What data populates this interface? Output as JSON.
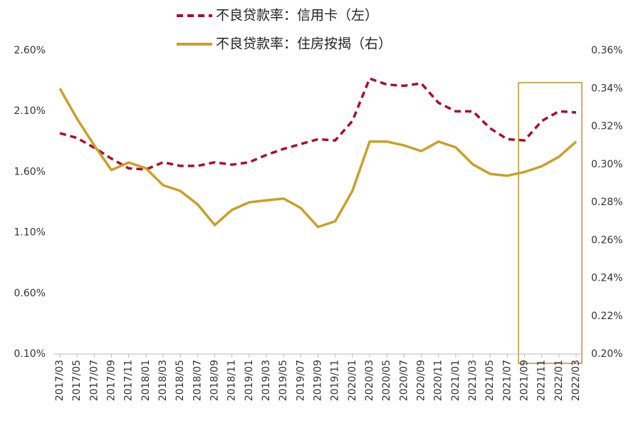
{
  "chart_data": {
    "type": "line",
    "categories": [
      "2017/03",
      "2017/05",
      "2017/07",
      "2017/09",
      "2017/11",
      "2018/01",
      "2018/03",
      "2018/05",
      "2018/07",
      "2018/09",
      "2018/11",
      "2019/01",
      "2019/03",
      "2019/05",
      "2019/07",
      "2019/09",
      "2019/11",
      "2020/01",
      "2020/03",
      "2020/05",
      "2020/07",
      "2020/09",
      "2020/11",
      "2021/01",
      "2021/03",
      "2021/05",
      "2021/07",
      "2021/09",
      "2021/11",
      "2022/01",
      "2022/03"
    ],
    "series": [
      {
        "name": "不良贷款率：信用卡（左）",
        "color": "#a50f2d",
        "line_style": "dashed",
        "values": [
          1.92,
          1.88,
          1.8,
          1.71,
          1.63,
          1.62,
          1.68,
          1.65,
          1.65,
          1.68,
          1.66,
          1.68,
          1.74,
          1.79,
          1.83,
          1.87,
          1.86,
          2.02,
          2.37,
          2.32,
          2.31,
          2.33,
          2.17,
          2.1,
          2.1,
          1.96,
          1.87,
          1.86,
          2.02,
          2.1,
          2.09
        ]
      },
      {
        "name": "不良贷款率：住房按揭（右）",
        "color": "#c8a02a",
        "line_style": "solid",
        "axis": "y2",
        "values": [
          0.34,
          0.324,
          0.31,
          0.297,
          0.301,
          0.298,
          0.289,
          0.286,
          0.279,
          0.268,
          0.276,
          0.28,
          0.281,
          0.282,
          0.277,
          0.267,
          0.27,
          0.286,
          0.312,
          0.312,
          0.31,
          0.307,
          0.312,
          0.309,
          0.3,
          0.295,
          0.294,
          0.296,
          0.299,
          0.304,
          0.312
        ]
      }
    ],
    "ylim": [
      0.1,
      2.6
    ],
    "yticks": [
      {
        "value": 0.1,
        "label": "0.10%"
      },
      {
        "value": 0.6,
        "label": "0.60%"
      },
      {
        "value": 1.1,
        "label": "1.10%"
      },
      {
        "value": 1.6,
        "label": "1.60%"
      },
      {
        "value": 2.1,
        "label": "2.10%"
      },
      {
        "value": 2.6,
        "label": "2.60%"
      }
    ],
    "y2lim": [
      0.2,
      0.36
    ],
    "y2ticks": [
      {
        "value": 0.2,
        "label": "0.20%"
      },
      {
        "value": 0.22,
        "label": "0.22%"
      },
      {
        "value": 0.24,
        "label": "0.24%"
      },
      {
        "value": 0.26,
        "label": "0.26%"
      },
      {
        "value": 0.28,
        "label": "0.28%"
      },
      {
        "value": 0.3,
        "label": "0.30%"
      },
      {
        "value": 0.32,
        "label": "0.32%"
      },
      {
        "value": 0.34,
        "label": "0.34%"
      },
      {
        "value": 0.36,
        "label": "0.36%"
      }
    ],
    "grid": false
  }
}
